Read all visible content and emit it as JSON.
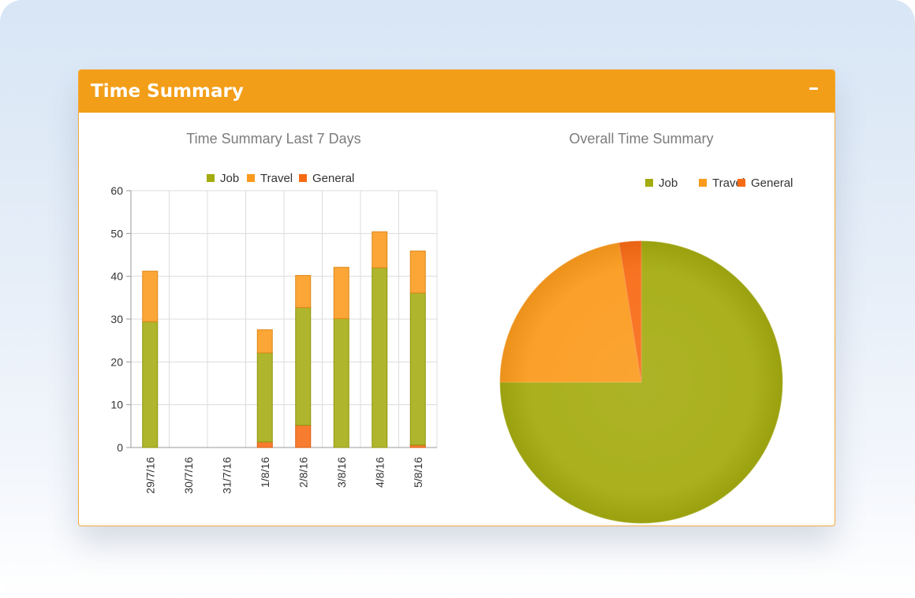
{
  "panel": {
    "title": "Time Summary",
    "collapse_icon": "minus-icon"
  },
  "colors": {
    "header": "#f39e18",
    "job": "#a4ab0f",
    "travel": "#fb9a1c",
    "general": "#f76a14"
  },
  "chart_data": [
    {
      "type": "bar",
      "stacked": true,
      "title": "Time Summary Last 7 Days",
      "xlabel": "",
      "ylabel": "",
      "ylim": [
        0,
        60
      ],
      "yticks": [
        0,
        10,
        20,
        30,
        40,
        50,
        60
      ],
      "grid": true,
      "legend_position": "top",
      "categories": [
        "29/7/16",
        "30/7/16",
        "31/7/16",
        "1/8/16",
        "2/8/16",
        "3/8/16",
        "4/8/16",
        "5/8/16"
      ],
      "series": [
        {
          "name": "General",
          "values": [
            0,
            0,
            0,
            1.3,
            5.2,
            0,
            0,
            0.6
          ]
        },
        {
          "name": "Job",
          "values": [
            29.4,
            0,
            0,
            20.8,
            27.5,
            30.1,
            42,
            35.5
          ]
        },
        {
          "name": "Travel",
          "values": [
            11.8,
            0,
            0,
            5.4,
            7.5,
            12,
            8.4,
            9.8
          ]
        }
      ]
    },
    {
      "type": "pie",
      "title": "Overall Time Summary",
      "legend_position": "top",
      "slices": [
        {
          "name": "Job",
          "value": 75
        },
        {
          "name": "Travel",
          "value": 22.5
        },
        {
          "name": "General",
          "value": 2.5
        }
      ]
    }
  ]
}
